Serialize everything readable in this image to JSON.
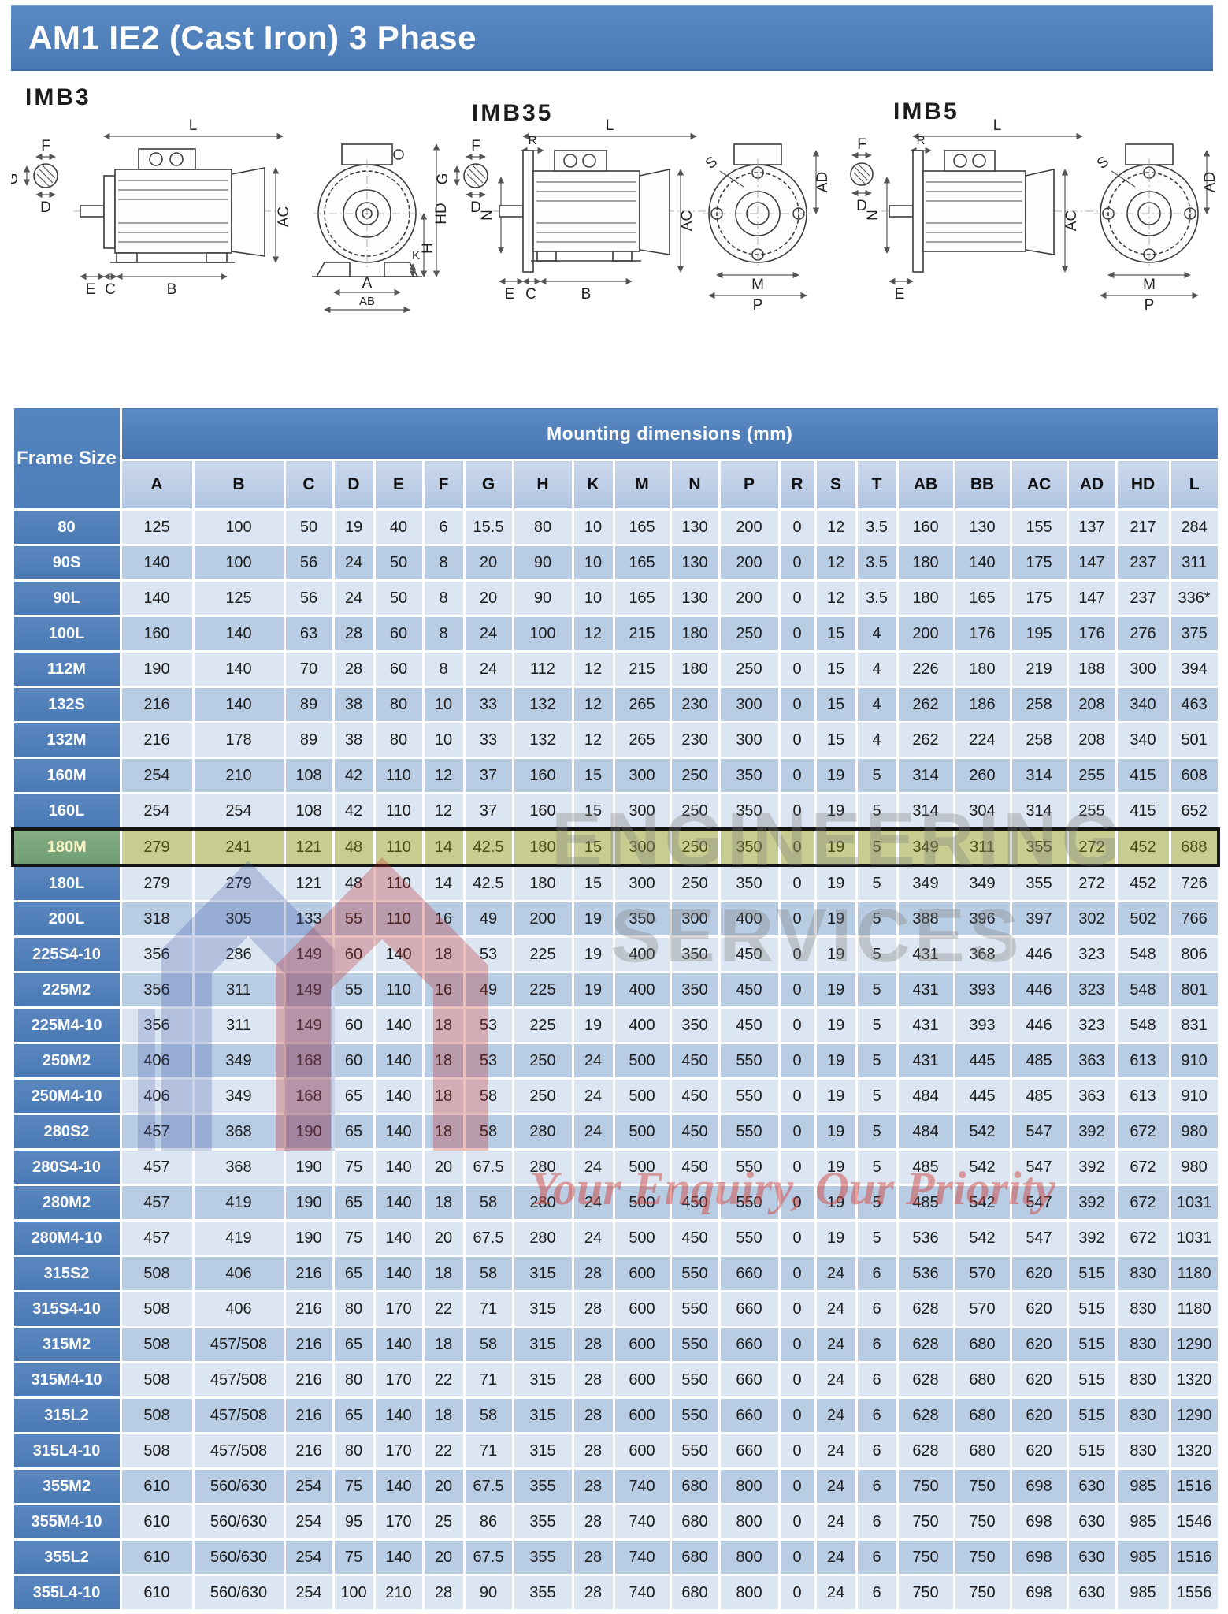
{
  "header": {
    "title": "AM1 IE2 (Cast Iron) 3 Phase"
  },
  "diagrams": {
    "imb3": {
      "title": "IMB3",
      "dims": {
        "f": "F",
        "g": "G",
        "d": "D",
        "l": "L",
        "ac": "AC",
        "hd": "HD",
        "h": "H",
        "e": "E",
        "c": "C",
        "b": "B",
        "a": "A",
        "ab": "AB",
        "k": "K"
      }
    },
    "imb35": {
      "title": "IMB35",
      "dims": {
        "g": "G",
        "f": "F",
        "d": "D",
        "r": "R",
        "l": "L",
        "n": "N",
        "ac": "AC",
        "e": "E",
        "c": "C",
        "b": "B",
        "s": "S",
        "ad": "AD",
        "m": "M",
        "p": "P"
      }
    },
    "imb5": {
      "title": "IMB5",
      "dims": {
        "f": "F",
        "d": "D",
        "r": "R",
        "l": "L",
        "n": "N",
        "ac": "AC",
        "e": "E",
        "s": "S",
        "ad": "AD",
        "m": "M",
        "p": "P"
      }
    }
  },
  "watermark": {
    "line1": "ENGINEERING",
    "line2": "SERVICES",
    "tagline": "Your Enquiry, Our Priority"
  },
  "table": {
    "corner_header": "Frame Size",
    "group_header": "Mounting dimensions (mm)",
    "columns": [
      "A",
      "B",
      "C",
      "D",
      "E",
      "F",
      "G",
      "H",
      "K",
      "M",
      "N",
      "P",
      "R",
      "S",
      "T",
      "AB",
      "BB",
      "AC",
      "AD",
      "HD",
      "L"
    ],
    "highlighted_frame": "180M",
    "rows": [
      {
        "frame": "80",
        "values": [
          "125",
          "100",
          "50",
          "19",
          "40",
          "6",
          "15.5",
          "80",
          "10",
          "165",
          "130",
          "200",
          "0",
          "12",
          "3.5",
          "160",
          "130",
          "155",
          "137",
          "217",
          "284"
        ]
      },
      {
        "frame": "90S",
        "values": [
          "140",
          "100",
          "56",
          "24",
          "50",
          "8",
          "20",
          "90",
          "10",
          "165",
          "130",
          "200",
          "0",
          "12",
          "3.5",
          "180",
          "140",
          "175",
          "147",
          "237",
          "311"
        ]
      },
      {
        "frame": "90L",
        "values": [
          "140",
          "125",
          "56",
          "24",
          "50",
          "8",
          "20",
          "90",
          "10",
          "165",
          "130",
          "200",
          "0",
          "12",
          "3.5",
          "180",
          "165",
          "175",
          "147",
          "237",
          "336*"
        ]
      },
      {
        "frame": "100L",
        "values": [
          "160",
          "140",
          "63",
          "28",
          "60",
          "8",
          "24",
          "100",
          "12",
          "215",
          "180",
          "250",
          "0",
          "15",
          "4",
          "200",
          "176",
          "195",
          "176",
          "276",
          "375"
        ]
      },
      {
        "frame": "112M",
        "values": [
          "190",
          "140",
          "70",
          "28",
          "60",
          "8",
          "24",
          "112",
          "12",
          "215",
          "180",
          "250",
          "0",
          "15",
          "4",
          "226",
          "180",
          "219",
          "188",
          "300",
          "394"
        ]
      },
      {
        "frame": "132S",
        "values": [
          "216",
          "140",
          "89",
          "38",
          "80",
          "10",
          "33",
          "132",
          "12",
          "265",
          "230",
          "300",
          "0",
          "15",
          "4",
          "262",
          "186",
          "258",
          "208",
          "340",
          "463"
        ]
      },
      {
        "frame": "132M",
        "values": [
          "216",
          "178",
          "89",
          "38",
          "80",
          "10",
          "33",
          "132",
          "12",
          "265",
          "230",
          "300",
          "0",
          "15",
          "4",
          "262",
          "224",
          "258",
          "208",
          "340",
          "501"
        ]
      },
      {
        "frame": "160M",
        "values": [
          "254",
          "210",
          "108",
          "42",
          "110",
          "12",
          "37",
          "160",
          "15",
          "300",
          "250",
          "350",
          "0",
          "19",
          "5",
          "314",
          "260",
          "314",
          "255",
          "415",
          "608"
        ]
      },
      {
        "frame": "160L",
        "values": [
          "254",
          "254",
          "108",
          "42",
          "110",
          "12",
          "37",
          "160",
          "15",
          "300",
          "250",
          "350",
          "0",
          "19",
          "5",
          "314",
          "304",
          "314",
          "255",
          "415",
          "652"
        ]
      },
      {
        "frame": "180M",
        "values": [
          "279",
          "241",
          "121",
          "48",
          "110",
          "14",
          "42.5",
          "180",
          "15",
          "300",
          "250",
          "350",
          "0",
          "19",
          "5",
          "349",
          "311",
          "355",
          "272",
          "452",
          "688"
        ]
      },
      {
        "frame": "180L",
        "values": [
          "279",
          "279",
          "121",
          "48",
          "110",
          "14",
          "42.5",
          "180",
          "15",
          "300",
          "250",
          "350",
          "0",
          "19",
          "5",
          "349",
          "349",
          "355",
          "272",
          "452",
          "726"
        ]
      },
      {
        "frame": "200L",
        "values": [
          "318",
          "305",
          "133",
          "55",
          "110",
          "16",
          "49",
          "200",
          "19",
          "350",
          "300",
          "400",
          "0",
          "19",
          "5",
          "388",
          "396",
          "397",
          "302",
          "502",
          "766"
        ]
      },
      {
        "frame": "225S4-10",
        "values": [
          "356",
          "286",
          "149",
          "60",
          "140",
          "18",
          "53",
          "225",
          "19",
          "400",
          "350",
          "450",
          "0",
          "19",
          "5",
          "431",
          "368",
          "446",
          "323",
          "548",
          "806"
        ]
      },
      {
        "frame": "225M2",
        "values": [
          "356",
          "311",
          "149",
          "55",
          "110",
          "16",
          "49",
          "225",
          "19",
          "400",
          "350",
          "450",
          "0",
          "19",
          "5",
          "431",
          "393",
          "446",
          "323",
          "548",
          "801"
        ]
      },
      {
        "frame": "225M4-10",
        "values": [
          "356",
          "311",
          "149",
          "60",
          "140",
          "18",
          "53",
          "225",
          "19",
          "400",
          "350",
          "450",
          "0",
          "19",
          "5",
          "431",
          "393",
          "446",
          "323",
          "548",
          "831"
        ]
      },
      {
        "frame": "250M2",
        "values": [
          "406",
          "349",
          "168",
          "60",
          "140",
          "18",
          "53",
          "250",
          "24",
          "500",
          "450",
          "550",
          "0",
          "19",
          "5",
          "431",
          "445",
          "485",
          "363",
          "613",
          "910"
        ]
      },
      {
        "frame": "250M4-10",
        "values": [
          "406",
          "349",
          "168",
          "65",
          "140",
          "18",
          "58",
          "250",
          "24",
          "500",
          "450",
          "550",
          "0",
          "19",
          "5",
          "484",
          "445",
          "485",
          "363",
          "613",
          "910"
        ]
      },
      {
        "frame": "280S2",
        "values": [
          "457",
          "368",
          "190",
          "65",
          "140",
          "18",
          "58",
          "280",
          "24",
          "500",
          "450",
          "550",
          "0",
          "19",
          "5",
          "484",
          "542",
          "547",
          "392",
          "672",
          "980"
        ]
      },
      {
        "frame": "280S4-10",
        "values": [
          "457",
          "368",
          "190",
          "75",
          "140",
          "20",
          "67.5",
          "280",
          "24",
          "500",
          "450",
          "550",
          "0",
          "19",
          "5",
          "485",
          "542",
          "547",
          "392",
          "672",
          "980"
        ]
      },
      {
        "frame": "280M2",
        "values": [
          "457",
          "419",
          "190",
          "65",
          "140",
          "18",
          "58",
          "280",
          "24",
          "500",
          "450",
          "550",
          "0",
          "19",
          "5",
          "485",
          "542",
          "547",
          "392",
          "672",
          "1031"
        ]
      },
      {
        "frame": "280M4-10",
        "values": [
          "457",
          "419",
          "190",
          "75",
          "140",
          "20",
          "67.5",
          "280",
          "24",
          "500",
          "450",
          "550",
          "0",
          "19",
          "5",
          "536",
          "542",
          "547",
          "392",
          "672",
          "1031"
        ]
      },
      {
        "frame": "315S2",
        "values": [
          "508",
          "406",
          "216",
          "65",
          "140",
          "18",
          "58",
          "315",
          "28",
          "600",
          "550",
          "660",
          "0",
          "24",
          "6",
          "536",
          "570",
          "620",
          "515",
          "830",
          "1180"
        ]
      },
      {
        "frame": "315S4-10",
        "values": [
          "508",
          "406",
          "216",
          "80",
          "170",
          "22",
          "71",
          "315",
          "28",
          "600",
          "550",
          "660",
          "0",
          "24",
          "6",
          "628",
          "570",
          "620",
          "515",
          "830",
          "1180"
        ]
      },
      {
        "frame": "315M2",
        "values": [
          "508",
          "457/508",
          "216",
          "65",
          "140",
          "18",
          "58",
          "315",
          "28",
          "600",
          "550",
          "660",
          "0",
          "24",
          "6",
          "628",
          "680",
          "620",
          "515",
          "830",
          "1290"
        ]
      },
      {
        "frame": "315M4-10",
        "values": [
          "508",
          "457/508",
          "216",
          "80",
          "170",
          "22",
          "71",
          "315",
          "28",
          "600",
          "550",
          "660",
          "0",
          "24",
          "6",
          "628",
          "680",
          "620",
          "515",
          "830",
          "1320"
        ]
      },
      {
        "frame": "315L2",
        "values": [
          "508",
          "457/508",
          "216",
          "65",
          "140",
          "18",
          "58",
          "315",
          "28",
          "600",
          "550",
          "660",
          "0",
          "24",
          "6",
          "628",
          "680",
          "620",
          "515",
          "830",
          "1290"
        ]
      },
      {
        "frame": "315L4-10",
        "values": [
          "508",
          "457/508",
          "216",
          "80",
          "170",
          "22",
          "71",
          "315",
          "28",
          "600",
          "550",
          "660",
          "0",
          "24",
          "6",
          "628",
          "680",
          "620",
          "515",
          "830",
          "1320"
        ]
      },
      {
        "frame": "355M2",
        "values": [
          "610",
          "560/630",
          "254",
          "75",
          "140",
          "20",
          "67.5",
          "355",
          "28",
          "740",
          "680",
          "800",
          "0",
          "24",
          "6",
          "750",
          "750",
          "698",
          "630",
          "985",
          "1516"
        ]
      },
      {
        "frame": "355M4-10",
        "values": [
          "610",
          "560/630",
          "254",
          "95",
          "170",
          "25",
          "86",
          "355",
          "28",
          "740",
          "680",
          "800",
          "0",
          "24",
          "6",
          "750",
          "750",
          "698",
          "630",
          "985",
          "1546"
        ]
      },
      {
        "frame": "355L2",
        "values": [
          "610",
          "560/630",
          "254",
          "75",
          "140",
          "20",
          "67.5",
          "355",
          "28",
          "740",
          "680",
          "800",
          "0",
          "24",
          "6",
          "750",
          "750",
          "698",
          "630",
          "985",
          "1516"
        ]
      },
      {
        "frame": "355L4-10",
        "values": [
          "610",
          "560/630",
          "254",
          "100",
          "210",
          "28",
          "90",
          "355",
          "28",
          "740",
          "680",
          "800",
          "0",
          "24",
          "6",
          "750",
          "750",
          "698",
          "630",
          "985",
          "1556"
        ]
      }
    ]
  },
  "colors": {
    "title_bar": "#4f81bd",
    "header_blue": "#4f81bd",
    "row_light": "#dce6f2",
    "row_medium": "#b8cce4",
    "highlight_bg": "#c7cd90",
    "highlight_frame_bg": "#79a57a",
    "highlight_border": "#141414",
    "watermark_gray": "#7d7d7d",
    "watermark_red": "#d04842"
  }
}
